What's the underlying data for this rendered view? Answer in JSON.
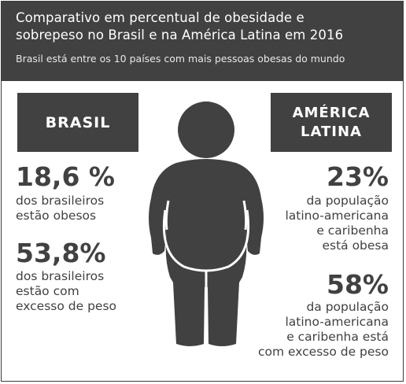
{
  "header": {
    "title_line1": "Comparativo em percentual de obesidade e",
    "title_line2": "sobrepeso no Brasil e na América Latina em 2016",
    "subtitle": "Brasil está entre os 10 países com mais pessoas obesas do mundo"
  },
  "brasil": {
    "label": "BRASIL",
    "obesity_value": "18,6 %",
    "obesity_desc": [
      "dos brasileiros",
      "estão obesos"
    ],
    "overweight_value": "53,8%",
    "overweight_desc": [
      "dos brasileiros",
      "estão com",
      "excesso de peso"
    ]
  },
  "america_latina": {
    "label_line1": "AMÉRICA",
    "label_line2": "LATINA",
    "obesity_value": "23%",
    "obesity_desc": [
      "da população",
      "latino-americana",
      "e caribenha",
      "está obesa"
    ],
    "overweight_value": "58%",
    "overweight_desc": [
      "da população",
      "latino-americana",
      "e caribenha está",
      "com excesso de peso"
    ]
  },
  "colors": {
    "dark": "#414141",
    "background": "#ffffff"
  },
  "icons": {
    "figure": "obese-person-silhouette-icon"
  }
}
